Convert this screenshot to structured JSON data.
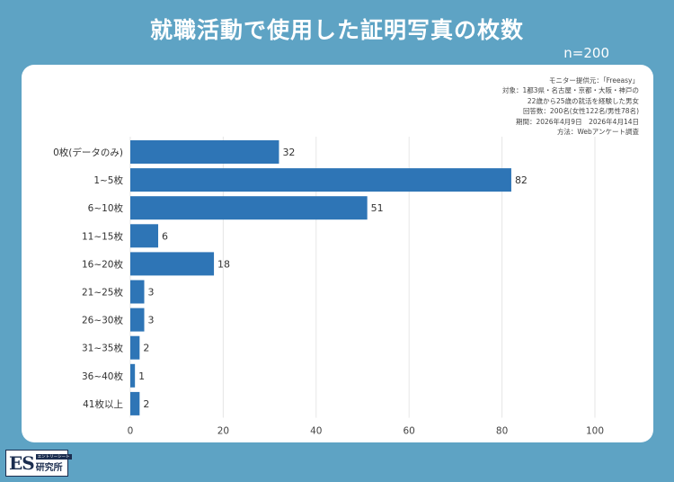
{
  "header": {
    "title": "就職活動で使用した証明写真の枚数",
    "n_label": "n=200"
  },
  "notes": [
    "モニター提供元：「Freeasy」",
    "対象：1都3県・名古屋・京都・大阪・神戸の",
    "22歳から25歳の就活を経験した男女",
    "回答数：200名(女性122名/男性78名)",
    "期間：2026年4月9日　2026年4月14日",
    "方法：Webアンケート調査"
  ],
  "logo": {
    "mark": "ES",
    "sub": "エントリーシート",
    "name": "研究所"
  },
  "colors": {
    "background": "#5ea3c4",
    "bar": "#2e75b6",
    "grid": "#e6e6e6"
  },
  "chart_data": {
    "type": "bar",
    "orientation": "horizontal",
    "categories": [
      "0枚(データのみ)",
      "1~5枚",
      "6~10枚",
      "11~15枚",
      "16~20枚",
      "21~25枚",
      "26~30枚",
      "31~35枚",
      "36~40枚",
      "41枚以上"
    ],
    "values": [
      32,
      82,
      51,
      6,
      18,
      3,
      3,
      2,
      1,
      2
    ],
    "xlim": [
      0,
      100
    ],
    "xticks": [
      0,
      20,
      40,
      60,
      80,
      100
    ],
    "grid": "vertical",
    "title": "",
    "xlabel": "",
    "ylabel": ""
  }
}
